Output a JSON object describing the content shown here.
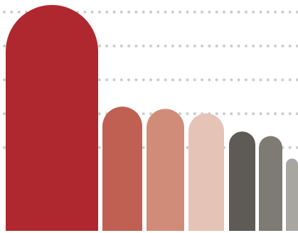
{
  "chart_data": {
    "type": "bar",
    "title": "",
    "xlabel": "",
    "ylabel": "",
    "grid": true,
    "categories": [
      "",
      "",
      "",
      "",
      "",
      "",
      ""
    ],
    "values": [
      100,
      55,
      54,
      52,
      44,
      42,
      32
    ],
    "ylim": [
      0,
      100
    ],
    "colors": [
      "#b0282f",
      "#c06052",
      "#d08c79",
      "#e6c3b7",
      "#5e5b56",
      "#7e7b75",
      "#a8a6a1"
    ],
    "grid_color": "#cccccc",
    "gridline_values": [
      40,
      55,
      70,
      85,
      100
    ]
  }
}
